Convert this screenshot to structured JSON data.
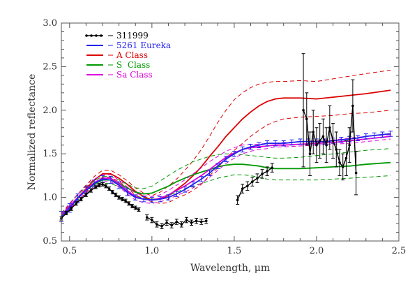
{
  "chart_data": {
    "type": "line",
    "title": "",
    "xlabel": "Wavelength, μm",
    "ylabel": "Normalized reflectance",
    "xlim": [
      0.45,
      2.5
    ],
    "ylim": [
      0.5,
      3.0
    ],
    "xticks": [
      0.5,
      1.0,
      1.5,
      2.0,
      2.5
    ],
    "xtick_labels": [
      "0.5",
      "1.0",
      "1.5",
      "2.0",
      "2.5"
    ],
    "yticks": [
      0.5,
      1.0,
      1.5,
      2.0,
      2.5,
      3.0
    ],
    "ytick_labels": [
      "0.5",
      "1.0",
      "1.5",
      "2.0",
      "2.5",
      "3.0"
    ],
    "grid": false,
    "legend_placement": "top-left",
    "series": [
      {
        "name": "311999",
        "color": "#000000",
        "style": "points-errorbars",
        "segments": [
          {
            "x": [
              0.45,
              0.48,
              0.51,
              0.54,
              0.57,
              0.6,
              0.63,
              0.66,
              0.68,
              0.7,
              0.72,
              0.74,
              0.76,
              0.78,
              0.8,
              0.82,
              0.84,
              0.86,
              0.88,
              0.9,
              0.92
            ],
            "y": [
              0.76,
              0.82,
              0.87,
              0.93,
              0.98,
              1.03,
              1.08,
              1.12,
              1.14,
              1.15,
              1.13,
              1.1,
              1.06,
              1.03,
              1.0,
              0.98,
              0.96,
              0.93,
              0.9,
              0.88,
              0.86
            ],
            "err": [
              0.02,
              0.02,
              0.02,
              0.02,
              0.02,
              0.02,
              0.02,
              0.02,
              0.02,
              0.02,
              0.02,
              0.02,
              0.02,
              0.02,
              0.02,
              0.02,
              0.02,
              0.02,
              0.02,
              0.02,
              0.02
            ]
          },
          {
            "x": [
              0.97,
              1.0,
              1.03,
              1.06,
              1.09,
              1.12,
              1.15,
              1.18,
              1.21,
              1.24,
              1.27,
              1.3,
              1.33
            ],
            "y": [
              0.77,
              0.74,
              0.69,
              0.67,
              0.71,
              0.68,
              0.72,
              0.69,
              0.74,
              0.71,
              0.73,
              0.72,
              0.73
            ],
            "err": [
              0.03,
              0.03,
              0.03,
              0.03,
              0.03,
              0.03,
              0.03,
              0.03,
              0.03,
              0.03,
              0.03,
              0.03,
              0.03
            ]
          },
          {
            "x": [
              1.52,
              1.55,
              1.58,
              1.61,
              1.64,
              1.67,
              1.7,
              1.73
            ],
            "y": [
              0.97,
              1.1,
              1.13,
              1.18,
              1.22,
              1.27,
              1.3,
              1.34
            ],
            "err": [
              0.05,
              0.05,
              0.05,
              0.05,
              0.05,
              0.05,
              0.05,
              0.05
            ]
          },
          {
            "x": [
              1.92,
              1.94,
              1.96,
              1.98,
              2.0,
              2.02,
              2.04,
              2.06,
              2.08,
              2.1,
              2.12,
              2.14,
              2.16,
              2.18,
              2.2,
              2.22,
              2.24
            ],
            "y": [
              2.0,
              1.9,
              1.5,
              1.75,
              1.6,
              1.65,
              1.7,
              1.6,
              1.8,
              1.65,
              1.55,
              1.4,
              1.35,
              1.45,
              1.6,
              2.05,
              1.28
            ],
            "err": [
              0.65,
              0.3,
              0.25,
              0.25,
              0.2,
              0.2,
              0.2,
              0.2,
              0.25,
              0.2,
              0.2,
              0.15,
              0.15,
              0.2,
              0.2,
              0.3,
              0.25
            ]
          }
        ]
      },
      {
        "name": "5261 Eureka",
        "color": "#2222ee",
        "style": "line-errorbars",
        "x": [
          0.45,
          0.5,
          0.55,
          0.6,
          0.65,
          0.7,
          0.75,
          0.8,
          0.85,
          0.9,
          0.95,
          1.0,
          1.05,
          1.1,
          1.15,
          1.2,
          1.25,
          1.3,
          1.35,
          1.4,
          1.45,
          1.5,
          1.55,
          1.6,
          1.65,
          1.7,
          1.75,
          1.8,
          1.85,
          1.9,
          1.95,
          2.0,
          2.05,
          2.1,
          2.15,
          2.2,
          2.25,
          2.3,
          2.35,
          2.4,
          2.45
        ],
        "y": [
          0.78,
          0.88,
          0.99,
          1.08,
          1.16,
          1.21,
          1.2,
          1.14,
          1.06,
          1.0,
          0.98,
          0.97,
          0.98,
          1.0,
          1.04,
          1.09,
          1.15,
          1.21,
          1.28,
          1.36,
          1.44,
          1.5,
          1.55,
          1.58,
          1.6,
          1.62,
          1.62,
          1.62,
          1.63,
          1.64,
          1.64,
          1.64,
          1.64,
          1.65,
          1.66,
          1.67,
          1.68,
          1.7,
          1.71,
          1.72,
          1.73
        ],
        "err": [
          0.06,
          0.05,
          0.05,
          0.04,
          0.04,
          0.04,
          0.04,
          0.04,
          0.04,
          0.03,
          0.03,
          0.03,
          0.03,
          0.03,
          0.03,
          0.03,
          0.03,
          0.03,
          0.03,
          0.03,
          0.03,
          0.03,
          0.03,
          0.03,
          0.03,
          0.03,
          0.03,
          0.03,
          0.03,
          0.03,
          0.03,
          0.03,
          0.03,
          0.03,
          0.03,
          0.03,
          0.03,
          0.03,
          0.03,
          0.03,
          0.03
        ]
      },
      {
        "name": "A Class",
        "color": "#dd0000",
        "style": "mean-with-bounds",
        "x": [
          0.45,
          0.5,
          0.55,
          0.6,
          0.65,
          0.7,
          0.75,
          0.8,
          0.85,
          0.9,
          0.95,
          1.0,
          1.05,
          1.1,
          1.15,
          1.2,
          1.25,
          1.3,
          1.35,
          1.4,
          1.45,
          1.5,
          1.55,
          1.6,
          1.65,
          1.7,
          1.75,
          1.8,
          1.9,
          2.0,
          2.1,
          2.2,
          2.3,
          2.45
        ],
        "y": [
          0.78,
          0.89,
          1.0,
          1.1,
          1.2,
          1.27,
          1.27,
          1.22,
          1.15,
          1.07,
          1.01,
          0.97,
          0.98,
          1.02,
          1.09,
          1.16,
          1.25,
          1.35,
          1.47,
          1.58,
          1.7,
          1.8,
          1.9,
          1.98,
          2.05,
          2.1,
          2.13,
          2.14,
          2.14,
          2.13,
          2.15,
          2.17,
          2.19,
          2.23
        ],
        "upper": [
          0.8,
          0.92,
          1.04,
          1.14,
          1.24,
          1.31,
          1.31,
          1.26,
          1.19,
          1.11,
          1.05,
          1.02,
          1.06,
          1.13,
          1.21,
          1.31,
          1.42,
          1.55,
          1.7,
          1.86,
          2.0,
          2.12,
          2.2,
          2.26,
          2.3,
          2.32,
          2.33,
          2.33,
          2.34,
          2.33,
          2.36,
          2.39,
          2.42,
          2.46
        ],
        "lower": [
          0.76,
          0.86,
          0.96,
          1.06,
          1.16,
          1.23,
          1.23,
          1.18,
          1.11,
          1.03,
          0.98,
          0.95,
          0.93,
          0.94,
          0.99,
          1.03,
          1.08,
          1.15,
          1.25,
          1.34,
          1.45,
          1.54,
          1.62,
          1.7,
          1.77,
          1.83,
          1.87,
          1.9,
          1.92,
          1.93,
          1.94,
          1.96,
          1.97,
          2.0
        ]
      },
      {
        "name": "S  Class",
        "color": "#009900",
        "style": "mean-with-bounds",
        "x": [
          0.45,
          0.5,
          0.55,
          0.6,
          0.65,
          0.7,
          0.75,
          0.8,
          0.85,
          0.9,
          0.95,
          1.0,
          1.05,
          1.1,
          1.15,
          1.2,
          1.25,
          1.3,
          1.35,
          1.4,
          1.45,
          1.5,
          1.55,
          1.6,
          1.65,
          1.7,
          1.75,
          1.8,
          1.9,
          2.0,
          2.1,
          2.2,
          2.3,
          2.45
        ],
        "y": [
          0.8,
          0.9,
          1.0,
          1.08,
          1.15,
          1.2,
          1.2,
          1.16,
          1.11,
          1.06,
          1.04,
          1.05,
          1.09,
          1.13,
          1.18,
          1.22,
          1.26,
          1.29,
          1.32,
          1.35,
          1.37,
          1.38,
          1.38,
          1.37,
          1.36,
          1.34,
          1.33,
          1.33,
          1.33,
          1.34,
          1.35,
          1.36,
          1.38,
          1.4
        ],
        "upper": [
          0.82,
          0.93,
          1.03,
          1.12,
          1.19,
          1.24,
          1.24,
          1.2,
          1.15,
          1.11,
          1.1,
          1.13,
          1.19,
          1.25,
          1.31,
          1.36,
          1.41,
          1.44,
          1.47,
          1.49,
          1.5,
          1.5,
          1.49,
          1.48,
          1.47,
          1.46,
          1.45,
          1.45,
          1.46,
          1.48,
          1.5,
          1.52,
          1.54,
          1.56
        ],
        "lower": [
          0.78,
          0.87,
          0.97,
          1.04,
          1.11,
          1.16,
          1.16,
          1.12,
          1.07,
          1.02,
          0.99,
          0.98,
          0.99,
          1.02,
          1.06,
          1.1,
          1.13,
          1.16,
          1.19,
          1.22,
          1.24,
          1.26,
          1.26,
          1.25,
          1.23,
          1.21,
          1.2,
          1.2,
          1.2,
          1.2,
          1.21,
          1.22,
          1.23,
          1.25
        ]
      },
      {
        "name": "Sa Class",
        "color": "#dd00dd",
        "style": "mean-with-bounds",
        "x": [
          0.45,
          0.5,
          0.55,
          0.6,
          0.65,
          0.7,
          0.75,
          0.8,
          0.85,
          0.9,
          0.95,
          1.0,
          1.05,
          1.1,
          1.15,
          1.2,
          1.25,
          1.3,
          1.35,
          1.4,
          1.45,
          1.5,
          1.55,
          1.6,
          1.65,
          1.7,
          1.75,
          1.8,
          1.9,
          2.0,
          2.1,
          2.2,
          2.3,
          2.45
        ],
        "y": [
          0.79,
          0.9,
          1.0,
          1.09,
          1.17,
          1.22,
          1.22,
          1.16,
          1.08,
          1.01,
          0.98,
          0.97,
          0.99,
          1.03,
          1.08,
          1.13,
          1.19,
          1.25,
          1.32,
          1.39,
          1.46,
          1.51,
          1.55,
          1.57,
          1.58,
          1.59,
          1.6,
          1.6,
          1.61,
          1.62,
          1.63,
          1.65,
          1.67,
          1.7
        ],
        "upper": [
          0.81,
          0.93,
          1.04,
          1.13,
          1.21,
          1.26,
          1.26,
          1.2,
          1.12,
          1.05,
          1.02,
          1.01,
          1.03,
          1.08,
          1.14,
          1.2,
          1.27,
          1.34,
          1.41,
          1.47,
          1.53,
          1.57,
          1.6,
          1.61,
          1.61,
          1.62,
          1.62,
          1.63,
          1.64,
          1.65,
          1.66,
          1.68,
          1.7,
          1.72
        ],
        "lower": [
          0.77,
          0.87,
          0.96,
          1.05,
          1.13,
          1.18,
          1.18,
          1.12,
          1.04,
          0.97,
          0.94,
          0.93,
          0.95,
          0.98,
          1.02,
          1.06,
          1.11,
          1.16,
          1.23,
          1.31,
          1.39,
          1.45,
          1.5,
          1.53,
          1.55,
          1.56,
          1.58,
          1.58,
          1.59,
          1.6,
          1.61,
          1.62,
          1.64,
          1.67
        ]
      }
    ]
  }
}
